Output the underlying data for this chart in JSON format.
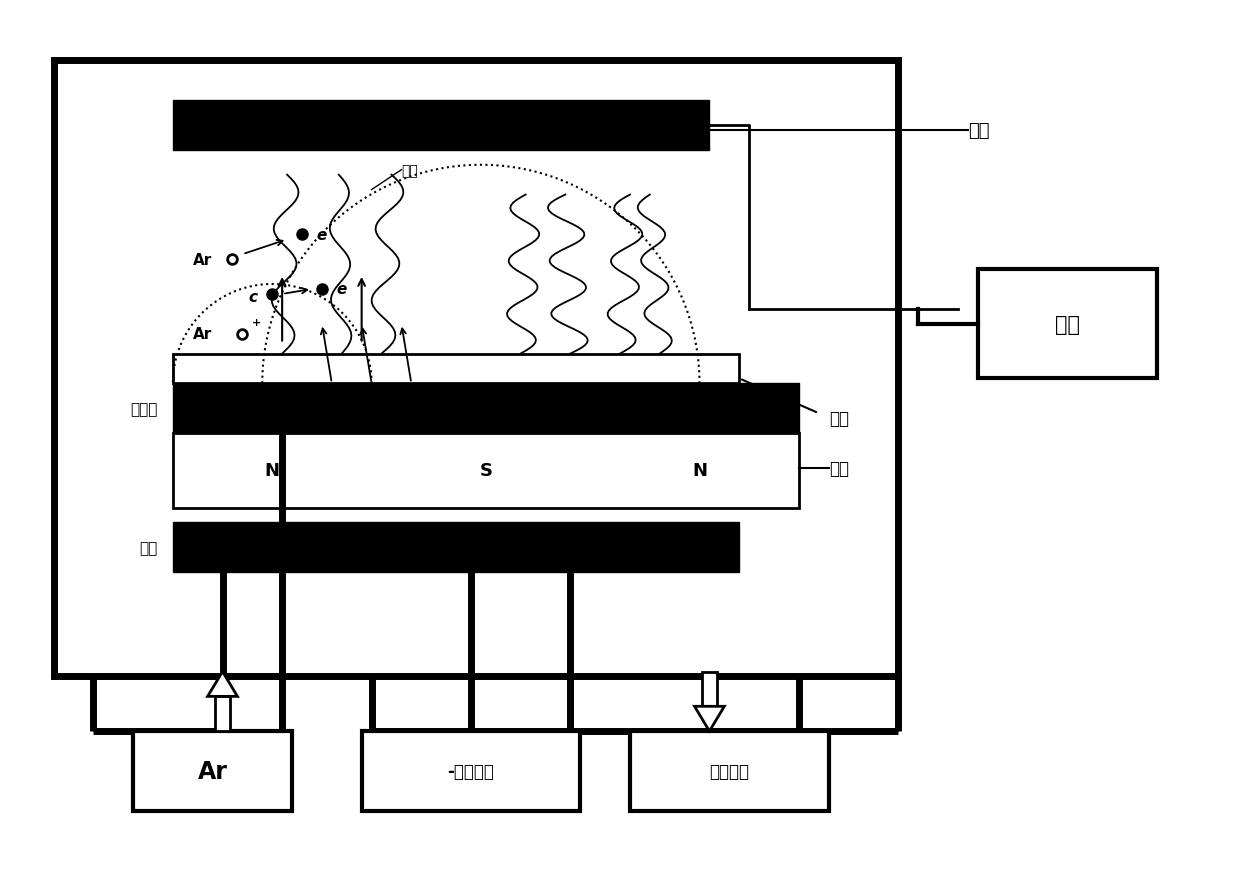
{
  "bg_color": "#ffffff",
  "BLACK": "#000000",
  "WHITE": "#ffffff",
  "fig_w": 12.4,
  "fig_h": 8.79,
  "labels": {
    "sample": "样品",
    "ground": "接地",
    "target_right": "靶材",
    "target_top": "靶材",
    "copper_back": "铜背板",
    "electrode": "极板",
    "magnet": "磁铁",
    "Ar_box": "Ar",
    "rf_power": "-射频电源",
    "vacuum": "真空泵组",
    "N1": "N",
    "S": "S",
    "N2": "N",
    "Ar_label": "Ar",
    "e1": "e",
    "e2": "e",
    "c_label": "c",
    "Ar_plus": "Ar"
  }
}
